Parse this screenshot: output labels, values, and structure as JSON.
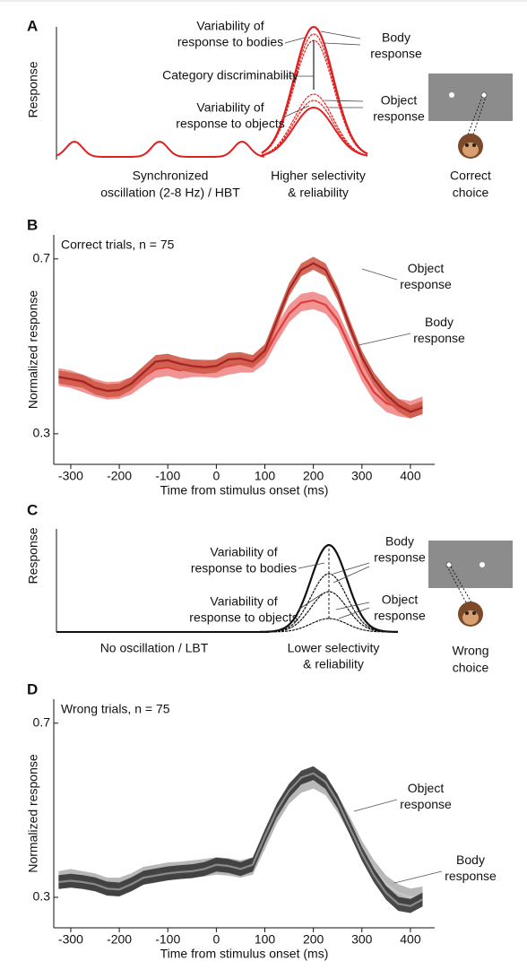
{
  "panel_labels": [
    "A",
    "B",
    "C",
    "D"
  ],
  "schematic_a": {
    "y_label": "Response",
    "body_variability": [
      "Variability of",
      "response to bodies"
    ],
    "discriminability": "Category discriminability",
    "object_variability": [
      "Variability of",
      "response to objects"
    ],
    "body_response": [
      "Body",
      "response"
    ],
    "object_response": [
      "Object",
      "response"
    ],
    "oscillation": [
      "Synchronized",
      "oscillation (2-8 Hz) / HBT"
    ],
    "selectivity": [
      "Higher selectivity",
      "& reliability"
    ],
    "choice": [
      "Correct",
      "choice"
    ]
  },
  "schematic_c": {
    "y_label": "Response",
    "body_variability": [
      "Variability of",
      "response to bodies"
    ],
    "object_variability": [
      "Variability of",
      "response to objects"
    ],
    "body_response": [
      "Body",
      "response"
    ],
    "object_response": [
      "Object",
      "response"
    ],
    "oscillation": "No oscillation / LBT",
    "selectivity": [
      "Lower selectivity",
      "& reliability"
    ],
    "choice": [
      "Wrong",
      "choice"
    ]
  },
  "chart_data": [
    {
      "type": "line",
      "title": "Correct trials, n = 75",
      "x_label": "Time from stimulus onset (ms)",
      "y_label": "Normalized response",
      "x": [
        -325,
        -300,
        -275,
        -250,
        -225,
        -200,
        -175,
        -150,
        -125,
        -100,
        -75,
        -50,
        -25,
        0,
        25,
        50,
        75,
        100,
        125,
        150,
        175,
        200,
        225,
        250,
        275,
        300,
        325,
        350,
        375,
        400,
        425
      ],
      "xlim": [
        -335,
        450
      ],
      "xticks": [
        -300,
        -200,
        -100,
        0,
        100,
        200,
        300,
        400
      ],
      "ylim": [
        0.23,
        0.755
      ],
      "yticks": [
        0.3,
        0.7
      ],
      "series": [
        {
          "name": "Object response",
          "color": "#e23a3c",
          "band_color": "#f08a88",
          "error": 0.02,
          "values": [
            0.43,
            0.425,
            0.415,
            0.405,
            0.398,
            0.4,
            0.41,
            0.43,
            0.448,
            0.452,
            0.445,
            0.45,
            0.45,
            0.448,
            0.455,
            0.46,
            0.46,
            0.48,
            0.53,
            0.575,
            0.6,
            0.605,
            0.595,
            0.56,
            0.5,
            0.44,
            0.395,
            0.37,
            0.36,
            0.355,
            0.365
          ]
        },
        {
          "name": "Body response",
          "color": "#a32424",
          "band_color": "#cf5a48",
          "error": 0.015,
          "values": [
            0.43,
            0.425,
            0.42,
            0.405,
            0.398,
            0.4,
            0.415,
            0.44,
            0.465,
            0.468,
            0.46,
            0.455,
            0.452,
            0.455,
            0.47,
            0.472,
            0.465,
            0.49,
            0.56,
            0.63,
            0.675,
            0.69,
            0.675,
            0.62,
            0.545,
            0.475,
            0.425,
            0.39,
            0.365,
            0.35,
            0.36
          ]
        }
      ]
    },
    {
      "type": "line",
      "title": "Wrong trials, n = 75",
      "x_label": "Time from stimulus onset (ms)",
      "y_label": "Normalized response",
      "x": [
        -325,
        -300,
        -275,
        -250,
        -225,
        -200,
        -175,
        -150,
        -125,
        -100,
        -75,
        -50,
        -25,
        0,
        25,
        50,
        75,
        100,
        125,
        150,
        175,
        200,
        225,
        250,
        275,
        300,
        325,
        350,
        375,
        400,
        425
      ],
      "xlim": [
        -335,
        450
      ],
      "xticks": [
        -300,
        -200,
        -100,
        0,
        100,
        200,
        300,
        400
      ],
      "ylim": [
        0.23,
        0.755
      ],
      "yticks": [
        0.3,
        0.7
      ],
      "series": [
        {
          "name": "Object response",
          "color": "#c8c8c8",
          "band_color": "#b0b0b0",
          "error": 0.02,
          "values": [
            0.34,
            0.345,
            0.34,
            0.335,
            0.325,
            0.325,
            0.335,
            0.35,
            0.355,
            0.36,
            0.362,
            0.365,
            0.368,
            0.372,
            0.37,
            0.365,
            0.372,
            0.43,
            0.49,
            0.535,
            0.56,
            0.57,
            0.555,
            0.515,
            0.465,
            0.41,
            0.365,
            0.33,
            0.31,
            0.3,
            0.305
          ]
        },
        {
          "name": "Body response",
          "color": "#8a8a8a",
          "band_color": "#353535",
          "error": 0.016,
          "values": [
            0.335,
            0.338,
            0.335,
            0.33,
            0.32,
            0.318,
            0.33,
            0.345,
            0.35,
            0.355,
            0.358,
            0.36,
            0.365,
            0.375,
            0.372,
            0.365,
            0.375,
            0.44,
            0.5,
            0.545,
            0.575,
            0.585,
            0.565,
            0.52,
            0.46,
            0.4,
            0.35,
            0.31,
            0.285,
            0.28,
            0.295
          ]
        }
      ]
    }
  ]
}
